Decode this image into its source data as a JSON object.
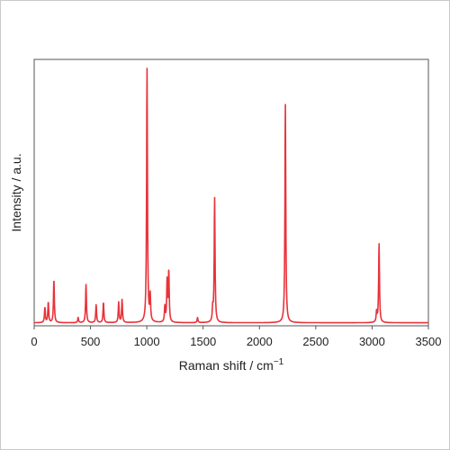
{
  "chart_data": {
    "type": "line",
    "title": "",
    "xlabel": "Raman shift / cm",
    "xlabel_superscript": "−1",
    "ylabel": "Intensity / a.u.",
    "xlim": [
      0,
      3500
    ],
    "ylim": [
      0,
      1.05
    ],
    "xticks": [
      0,
      500,
      1000,
      1500,
      2000,
      2500,
      3000,
      3500
    ],
    "grid": false,
    "legend": "none",
    "series": [
      {
        "color": "#e8333a",
        "baseline": 0.012,
        "peaks": [
          {
            "x": 95,
            "y": 0.06
          },
          {
            "x": 125,
            "y": 0.08
          },
          {
            "x": 175,
            "y": 0.17
          },
          {
            "x": 390,
            "y": 0.02
          },
          {
            "x": 460,
            "y": 0.15
          },
          {
            "x": 550,
            "y": 0.07
          },
          {
            "x": 615,
            "y": 0.08
          },
          {
            "x": 750,
            "y": 0.08
          },
          {
            "x": 780,
            "y": 0.09
          },
          {
            "x": 1002,
            "y": 1.0
          },
          {
            "x": 1030,
            "y": 0.1
          },
          {
            "x": 1160,
            "y": 0.06
          },
          {
            "x": 1180,
            "y": 0.16
          },
          {
            "x": 1195,
            "y": 0.2
          },
          {
            "x": 1450,
            "y": 0.02
          },
          {
            "x": 1585,
            "y": 0.05
          },
          {
            "x": 1602,
            "y": 0.49
          },
          {
            "x": 2230,
            "y": 0.86
          },
          {
            "x": 3040,
            "y": 0.04
          },
          {
            "x": 3062,
            "y": 0.31
          }
        ]
      }
    ]
  }
}
